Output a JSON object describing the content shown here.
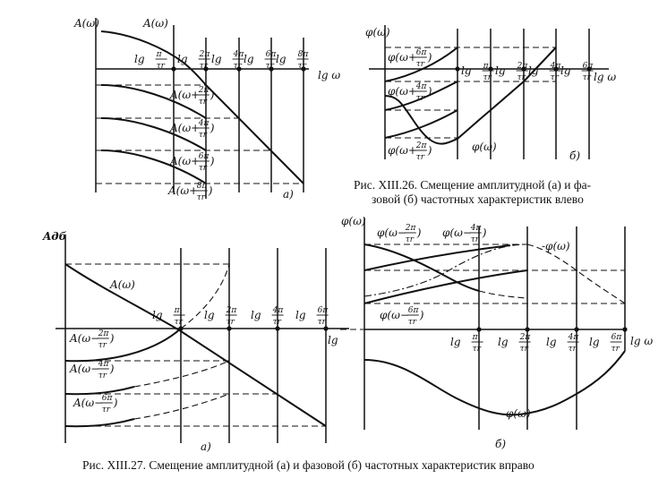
{
  "fig26": {
    "caption_line1": "Рис. XIII.26. Смещение амплитудной (а) и фа-",
    "caption_line2": "зовой (б) частотных характеристик влево",
    "a": {
      "y_axis_label": "A(ω)",
      "curve_label": "A(ω)",
      "x_axis_label": "lg ω",
      "ticks": [
        {
          "num": "π",
          "den": "τr"
        },
        {
          "num": "2π",
          "den": "τr"
        },
        {
          "num": "4π",
          "den": "τr"
        },
        {
          "num": "6π",
          "den": "τr"
        },
        {
          "num": "8π",
          "den": "τr"
        }
      ],
      "shifted": [
        {
          "prefix": "A(ω+",
          "num": "2π",
          "den": "τr"
        },
        {
          "prefix": "A(ω+",
          "num": "4π",
          "den": "τr"
        },
        {
          "prefix": "A(ω+",
          "num": "6π",
          "den": "τr"
        },
        {
          "prefix": "A(ω+",
          "num": "8π",
          "den": "τr"
        }
      ],
      "panel_label": "а)"
    },
    "b": {
      "y_axis_label": "φ(ω)",
      "curve_label": "φ(ω)",
      "x_axis_label": "lg ω",
      "ticks": [
        {
          "num": "π",
          "den": "τr"
        },
        {
          "num": "2π",
          "den": "τr"
        },
        {
          "num": "4π",
          "den": "τr"
        },
        {
          "num": "6π",
          "den": "τr"
        }
      ],
      "shifted": [
        {
          "prefix": "φ(ω+",
          "num": "6π",
          "den": "τr"
        },
        {
          "prefix": "φ(ω+",
          "num": "4π",
          "den": "τr"
        },
        {
          "prefix": "φ(ω+",
          "num": "2π",
          "den": "τr"
        }
      ],
      "panel_label": "б)"
    }
  },
  "fig27": {
    "caption": "Рис. XIII.27. Смещение амплитудной (а) и фазовой (б) частотных характеристик вправо",
    "a": {
      "y_axis_label": "Aдб",
      "curve_label": "A(ω)",
      "x_axis_label": "lg",
      "ticks": [
        {
          "num": "π",
          "den": "τr"
        },
        {
          "num": "2π",
          "den": "τr"
        },
        {
          "num": "4π",
          "den": "τr"
        },
        {
          "num": "6π",
          "den": "τr"
        }
      ],
      "shifted": [
        {
          "prefix": "A(ω−",
          "num": "2π",
          "den": "τr"
        },
        {
          "prefix": "A(ω−",
          "num": "4π",
          "den": "τr"
        },
        {
          "prefix": "A(ω−",
          "num": "6π",
          "den": "τr"
        }
      ],
      "panel_label": "а)"
    },
    "b": {
      "y_axis_label": "φ(ω)",
      "curve_label": "φ(ω)",
      "neg_curve_label": "-φ(ω)",
      "x_axis_label": "lg ω",
      "ticks": [
        {
          "num": "π",
          "den": "τr"
        },
        {
          "num": "2π",
          "den": "τr"
        },
        {
          "num": "4π",
          "den": "τr"
        },
        {
          "num": "6π",
          "den": "τr"
        }
      ],
      "shifted": [
        {
          "prefix": "φ(ω−",
          "num": "2π",
          "den": "τr"
        },
        {
          "prefix": "φ(ω−",
          "num": "4π",
          "den": "τr"
        },
        {
          "prefix": "φ(ω−",
          "num": "6π",
          "den": "τr"
        }
      ],
      "panel_label": "б)"
    }
  }
}
